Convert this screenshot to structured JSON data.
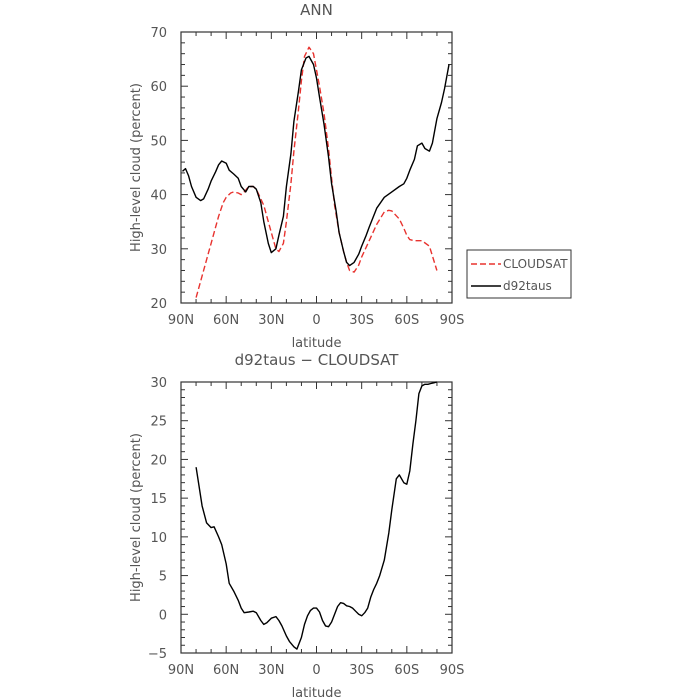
{
  "chart_data": [
    {
      "type": "line",
      "title": "ANN",
      "xlabel": "latitude",
      "ylabel": "High-level cloud (percent)",
      "x_ticks": [
        "90N",
        "60N",
        "30N",
        "0",
        "30S",
        "60S",
        "90S"
      ],
      "y_ticks": [
        "20",
        "30",
        "40",
        "50",
        "60",
        "70"
      ],
      "ylim": [
        20,
        70
      ],
      "xlim": [
        90,
        -90
      ],
      "legend": {
        "placement": "right",
        "entries": [
          "CLOUDSAT",
          "d92taus"
        ]
      },
      "series": [
        {
          "name": "CLOUDSAT",
          "style": "dashed",
          "color": "#e8332f",
          "x": [
            80,
            75,
            70,
            65,
            62,
            60,
            57,
            55,
            52,
            50,
            48,
            45,
            42,
            40,
            35,
            30,
            27,
            25,
            22,
            20,
            17,
            15,
            12,
            10,
            8,
            5,
            2,
            0,
            -2,
            -5,
            -8,
            -10,
            -12,
            -15,
            -18,
            -20,
            -22,
            -25,
            -28,
            -30,
            -35,
            -40,
            -45,
            -48,
            -50,
            -55,
            -58,
            -60,
            -62,
            -65,
            -70,
            -75,
            -80
          ],
          "y": [
            21,
            26,
            31,
            36,
            38.5,
            39.5,
            40.3,
            40.5,
            40.3,
            40,
            40.5,
            41.5,
            41.5,
            41,
            38,
            33,
            30,
            29.5,
            31,
            35,
            42,
            48,
            55.5,
            61,
            65.5,
            67.2,
            66,
            63,
            60,
            55,
            48.5,
            43,
            38,
            33,
            29.5,
            27.5,
            26,
            25.7,
            27,
            28.5,
            31.5,
            34.5,
            36.8,
            37.1,
            37,
            35.5,
            33.8,
            32.5,
            31.7,
            31.5,
            31.5,
            30.5,
            26
          ]
        },
        {
          "name": "d92taus",
          "style": "solid",
          "color": "#000000",
          "x": [
            89,
            87,
            85,
            83,
            80,
            77,
            75,
            72,
            70,
            67,
            65,
            63,
            60,
            58,
            55,
            52,
            50,
            47,
            45,
            42,
            40,
            37,
            35,
            32,
            30,
            27,
            25,
            22,
            20,
            17,
            15,
            12,
            10,
            7,
            5,
            2,
            0,
            -2,
            -5,
            -8,
            -10,
            -13,
            -15,
            -18,
            -20,
            -22,
            -25,
            -28,
            -30,
            -33,
            -35,
            -40,
            -45,
            -50,
            -55,
            -58,
            -60,
            -62,
            -65,
            -67,
            -70,
            -72,
            -75,
            -77,
            -80,
            -83,
            -85,
            -88
          ],
          "y": [
            44.3,
            44.8,
            43.5,
            41.5,
            39.5,
            38.9,
            39.2,
            41,
            42.5,
            44.2,
            45.5,
            46.2,
            45.8,
            44.5,
            43.8,
            43,
            41.5,
            40.5,
            41.5,
            41.5,
            41,
            38.5,
            35,
            31,
            29.3,
            30,
            32.5,
            36,
            41.5,
            47.5,
            53.5,
            59,
            63,
            65.2,
            65.5,
            64,
            61.5,
            58,
            53,
            47,
            42,
            37,
            33,
            29.5,
            27.5,
            26.9,
            27.5,
            29,
            30.5,
            32.5,
            34,
            37.5,
            39.5,
            40.5,
            41.5,
            42,
            43,
            44.5,
            46.5,
            49,
            49.5,
            48.5,
            48,
            49.5,
            54,
            57,
            59.5,
            64
          ]
        }
      ]
    },
    {
      "type": "line",
      "title": "d92taus − CLOUDSAT",
      "xlabel": "latitude",
      "ylabel": "High-level cloud (percent)",
      "x_ticks": [
        "90N",
        "60N",
        "30N",
        "0",
        "30S",
        "60S",
        "90S"
      ],
      "y_ticks": [
        "−5",
        "0",
        "5",
        "10",
        "15",
        "20",
        "25",
        "30"
      ],
      "ylim": [
        -5,
        30
      ],
      "xlim": [
        90,
        -90
      ],
      "series": [
        {
          "style": "solid",
          "color": "#000000",
          "x": [
            80,
            78,
            76,
            73,
            70,
            68,
            65,
            63,
            60,
            58,
            55,
            52,
            50,
            48,
            45,
            42,
            40,
            37,
            35,
            33,
            30,
            27,
            25,
            23,
            20,
            18,
            15,
            13,
            10,
            8,
            6,
            4,
            2,
            0,
            -2,
            -4,
            -6,
            -8,
            -10,
            -12,
            -14,
            -16,
            -18,
            -20,
            -22,
            -24,
            -26,
            -28,
            -30,
            -32,
            -34,
            -36,
            -38,
            -40,
            -42,
            -45,
            -48,
            -50,
            -53,
            -55,
            -58,
            -60,
            -62,
            -64,
            -66,
            -68,
            -70,
            -72,
            -74,
            -76,
            -78,
            -80
          ],
          "y": [
            19,
            16.5,
            14,
            11.8,
            11.2,
            11.3,
            10,
            9,
            6.5,
            4,
            3,
            1.8,
            0.8,
            0.2,
            0.3,
            0.4,
            0.2,
            -0.8,
            -1.3,
            -1.1,
            -0.5,
            -0.3,
            -0.8,
            -1.5,
            -2.8,
            -3.5,
            -4.2,
            -4.5,
            -3,
            -1.3,
            -0.2,
            0.5,
            0.8,
            0.8,
            0.3,
            -0.8,
            -1.5,
            -1.6,
            -1,
            0,
            1,
            1.5,
            1.4,
            1.1,
            1,
            0.8,
            0.4,
            0,
            -0.2,
            0.2,
            0.8,
            2.2,
            3.2,
            4,
            5,
            7,
            10.5,
            13.5,
            17.5,
            18,
            17,
            16.8,
            18.5,
            22,
            25,
            28.5,
            29.5,
            29.7,
            29.7,
            29.8,
            29.9,
            30
          ]
        }
      ]
    }
  ]
}
